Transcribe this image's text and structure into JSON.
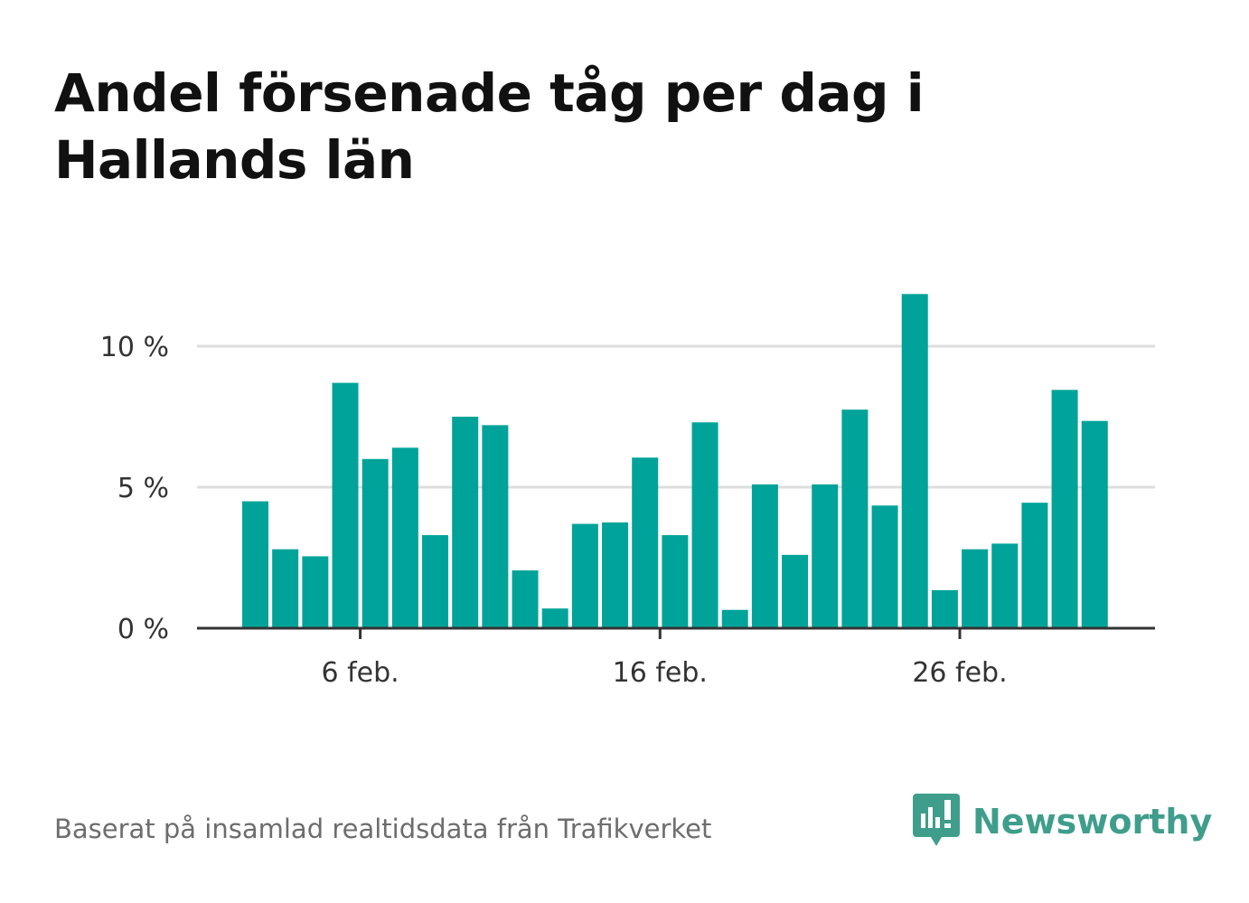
{
  "title": "Andel försenade tåg per dag i Hallands län",
  "source": "Baserat på insamlad realtidsdata från Trafikverket",
  "brand": {
    "name": "Newsworthy",
    "icon": "newsworthy-logo-icon",
    "color": "#3f9e8b"
  },
  "colors": {
    "bar": "#00a399",
    "grid": "#dddddd",
    "axis": "#333333"
  },
  "chart_data": {
    "type": "bar",
    "title": "Andel försenade tåg per dag i Hallands län",
    "xlabel": "",
    "ylabel": "",
    "categories": [
      "2024-02-02",
      "2024-02-03",
      "2024-02-04",
      "2024-02-05",
      "2024-02-06",
      "2024-02-07",
      "2024-02-08",
      "2024-02-09",
      "2024-02-10",
      "2024-02-11",
      "2024-02-12",
      "2024-02-13",
      "2024-02-14",
      "2024-02-15",
      "2024-02-16",
      "2024-02-17",
      "2024-02-18",
      "2024-02-19",
      "2024-02-20",
      "2024-02-21",
      "2024-02-22",
      "2024-02-23",
      "2024-02-24",
      "2024-02-25",
      "2024-02-26",
      "2024-02-27",
      "2024-02-28",
      "2024-02-29",
      "2024-03-01"
    ],
    "values": [
      4.5,
      2.8,
      2.55,
      8.7,
      6.0,
      6.4,
      3.3,
      7.5,
      7.2,
      2.05,
      0.7,
      3.7,
      3.75,
      6.05,
      3.3,
      7.3,
      0.65,
      5.1,
      2.6,
      5.1,
      7.75,
      4.35,
      11.85,
      1.35,
      2.8,
      3.0,
      4.45,
      8.45,
      7.35
    ],
    "value_unit": "%",
    "ylim": [
      0,
      12
    ],
    "y_ticks": [
      {
        "value": 0,
        "label": "0 %"
      },
      {
        "value": 5,
        "label": "5 %"
      },
      {
        "value": 10,
        "label": "10 %"
      }
    ],
    "x_ticks": [
      {
        "category": "2024-02-06",
        "label": "6 feb."
      },
      {
        "category": "2024-02-16",
        "label": "16 feb."
      },
      {
        "category": "2024-02-26",
        "label": "26 feb."
      }
    ],
    "grid": true,
    "legend": "none"
  }
}
